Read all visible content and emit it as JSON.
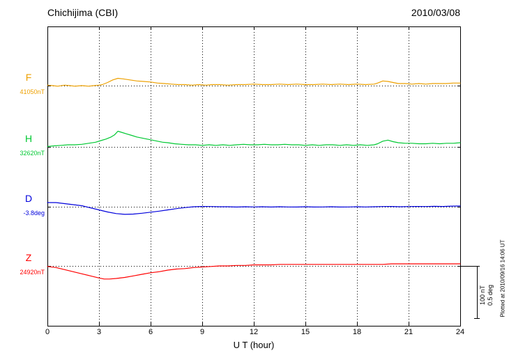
{
  "header": {
    "station": "Chichijima (CBI)",
    "date": "2010/03/08"
  },
  "footer_note": "Plotted at 2010/09/16 14:06 UT",
  "scale_bar": {
    "nt_label": "100 nT",
    "deg_label": "0.5 deg"
  },
  "x_axis": {
    "label": "U T (hour)",
    "min": 0,
    "max": 24,
    "ticks": [
      0,
      3,
      6,
      9,
      12,
      15,
      18,
      21,
      24
    ]
  },
  "chart_data": {
    "type": "line",
    "title": "Chichijima (CBI) magnetogram",
    "subtitle": "2010/03/08",
    "xlabel": "U T (hour)",
    "x_range": [
      0,
      24
    ],
    "grid": "dotted vertical every 3 hours",
    "legend_position": "left margin, one label per trace",
    "scale_per_division": {
      "nT": 100,
      "deg": 0.5
    },
    "series": [
      {
        "name": "F",
        "baseline_label": "41050nT",
        "baseline_value": 41050,
        "unit": "nT",
        "color": "#eda000",
        "points": [
          [
            0,
            1
          ],
          [
            0.3,
            0
          ],
          [
            0.6,
            -1
          ],
          [
            1,
            1
          ],
          [
            1.3,
            0
          ],
          [
            1.6,
            -1
          ],
          [
            2,
            0
          ],
          [
            2.4,
            -1
          ],
          [
            2.7,
            0
          ],
          [
            3,
            1
          ],
          [
            3.2,
            2
          ],
          [
            3.5,
            6
          ],
          [
            3.8,
            11
          ],
          [
            4.1,
            14
          ],
          [
            4.4,
            13
          ],
          [
            4.8,
            11
          ],
          [
            5.2,
            9
          ],
          [
            5.6,
            8
          ],
          [
            6,
            7
          ],
          [
            6.4,
            5
          ],
          [
            6.8,
            4
          ],
          [
            7.2,
            3
          ],
          [
            7.6,
            2
          ],
          [
            8,
            2
          ],
          [
            8.4,
            1
          ],
          [
            8.8,
            2
          ],
          [
            9.2,
            1
          ],
          [
            9.6,
            2
          ],
          [
            10,
            2
          ],
          [
            10.5,
            1
          ],
          [
            11,
            2
          ],
          [
            11.5,
            2
          ],
          [
            12,
            3
          ],
          [
            12.5,
            2
          ],
          [
            13,
            2
          ],
          [
            13.5,
            3
          ],
          [
            14,
            2
          ],
          [
            14.5,
            3
          ],
          [
            15,
            2
          ],
          [
            15.5,
            2
          ],
          [
            16,
            3
          ],
          [
            16.5,
            2
          ],
          [
            17,
            3
          ],
          [
            17.5,
            2
          ],
          [
            18,
            3
          ],
          [
            18.5,
            2
          ],
          [
            19,
            3
          ],
          [
            19.2,
            5
          ],
          [
            19.5,
            9
          ],
          [
            19.8,
            8
          ],
          [
            20.1,
            6
          ],
          [
            20.4,
            4
          ],
          [
            20.8,
            4
          ],
          [
            21.2,
            3
          ],
          [
            21.6,
            4
          ],
          [
            22,
            3
          ],
          [
            22.4,
            4
          ],
          [
            22.8,
            4
          ],
          [
            23.2,
            4
          ],
          [
            23.6,
            5
          ],
          [
            24,
            5
          ]
        ]
      },
      {
        "name": "H",
        "baseline_label": "32620nT",
        "baseline_value": 32620,
        "unit": "nT",
        "color": "#00c832",
        "points": [
          [
            0,
            1
          ],
          [
            0.4,
            2
          ],
          [
            0.8,
            3
          ],
          [
            1.2,
            4
          ],
          [
            1.6,
            4
          ],
          [
            2,
            5
          ],
          [
            2.4,
            7
          ],
          [
            2.8,
            9
          ],
          [
            3.1,
            12
          ],
          [
            3.4,
            15
          ],
          [
            3.7,
            19
          ],
          [
            3.9,
            23
          ],
          [
            4.1,
            30
          ],
          [
            4.3,
            28
          ],
          [
            4.6,
            25
          ],
          [
            4.9,
            22
          ],
          [
            5.2,
            19
          ],
          [
            5.5,
            17
          ],
          [
            5.8,
            15
          ],
          [
            6.1,
            13
          ],
          [
            6.4,
            11
          ],
          [
            6.7,
            9
          ],
          [
            7,
            8
          ],
          [
            7.4,
            6
          ],
          [
            7.8,
            5
          ],
          [
            8.2,
            4
          ],
          [
            8.6,
            4
          ],
          [
            9,
            3
          ],
          [
            9.4,
            4
          ],
          [
            9.8,
            3
          ],
          [
            10.2,
            4
          ],
          [
            10.6,
            3
          ],
          [
            11,
            4
          ],
          [
            11.4,
            5
          ],
          [
            11.8,
            4
          ],
          [
            12.2,
            4
          ],
          [
            12.6,
            5
          ],
          [
            13,
            4
          ],
          [
            13.4,
            4
          ],
          [
            13.8,
            5
          ],
          [
            14.2,
            4
          ],
          [
            14.6,
            4
          ],
          [
            15,
            3
          ],
          [
            15.4,
            4
          ],
          [
            15.8,
            3
          ],
          [
            16.2,
            4
          ],
          [
            16.6,
            4
          ],
          [
            17,
            3
          ],
          [
            17.4,
            4
          ],
          [
            17.8,
            3
          ],
          [
            18.2,
            4
          ],
          [
            18.6,
            3
          ],
          [
            19,
            4
          ],
          [
            19.2,
            6
          ],
          [
            19.5,
            11
          ],
          [
            19.8,
            13
          ],
          [
            20.1,
            10
          ],
          [
            20.4,
            8
          ],
          [
            20.8,
            7
          ],
          [
            21.2,
            7
          ],
          [
            21.6,
            6
          ],
          [
            22,
            6
          ],
          [
            22.4,
            7
          ],
          [
            22.8,
            6
          ],
          [
            23.2,
            7
          ],
          [
            23.6,
            7
          ],
          [
            24,
            8
          ]
        ]
      },
      {
        "name": "D",
        "baseline_label": "-3.8deg",
        "baseline_value": -3.8,
        "unit": "deg",
        "color": "#0000dc",
        "points": [
          [
            0,
            0.04
          ],
          [
            0.5,
            0.04
          ],
          [
            1,
            0.03
          ],
          [
            1.5,
            0.02
          ],
          [
            2,
            0.01
          ],
          [
            2.5,
            -0.01
          ],
          [
            3,
            -0.03
          ],
          [
            3.5,
            -0.05
          ],
          [
            4,
            -0.065
          ],
          [
            4.5,
            -0.073
          ],
          [
            5,
            -0.07
          ],
          [
            5.5,
            -0.062
          ],
          [
            6,
            -0.052
          ],
          [
            6.5,
            -0.042
          ],
          [
            7,
            -0.03
          ],
          [
            7.5,
            -0.018
          ],
          [
            8,
            -0.008
          ],
          [
            8.5,
            0.0
          ],
          [
            9,
            0.003
          ],
          [
            9.5,
            0.002
          ],
          [
            10,
            0.0
          ],
          [
            10.5,
            0.0
          ],
          [
            11,
            -0.003
          ],
          [
            11.5,
            0.0
          ],
          [
            12,
            -0.002
          ],
          [
            12.5,
            0.0
          ],
          [
            13,
            -0.003
          ],
          [
            13.5,
            0.0
          ],
          [
            14,
            -0.002
          ],
          [
            14.5,
            -0.003
          ],
          [
            15,
            0.0
          ],
          [
            15.5,
            -0.003
          ],
          [
            16,
            -0.002
          ],
          [
            16.5,
            0.0
          ],
          [
            17,
            -0.003
          ],
          [
            17.5,
            -0.002
          ],
          [
            18,
            0.0
          ],
          [
            18.5,
            -0.002
          ],
          [
            19,
            0.0
          ],
          [
            19.5,
            0.002
          ],
          [
            20,
            0.003
          ],
          [
            20.5,
            0.0
          ],
          [
            21,
            0.002
          ],
          [
            21.5,
            0.003
          ],
          [
            22,
            0.002
          ],
          [
            22.5,
            0.004
          ],
          [
            23,
            0.003
          ],
          [
            23.5,
            0.006
          ],
          [
            24,
            0.007
          ]
        ]
      },
      {
        "name": "Z",
        "baseline_label": "24920nT",
        "baseline_value": 24920,
        "unit": "nT",
        "color": "#ff0000",
        "points": [
          [
            0,
            -1
          ],
          [
            0.5,
            -3
          ],
          [
            1,
            -7
          ],
          [
            1.5,
            -11
          ],
          [
            2,
            -15
          ],
          [
            2.5,
            -19
          ],
          [
            3,
            -23
          ],
          [
            3.3,
            -25
          ],
          [
            3.6,
            -25
          ],
          [
            4,
            -24
          ],
          [
            4.5,
            -22
          ],
          [
            5,
            -19
          ],
          [
            5.5,
            -16
          ],
          [
            6,
            -13
          ],
          [
            6.5,
            -11
          ],
          [
            7,
            -8
          ],
          [
            7.5,
            -6
          ],
          [
            8,
            -5
          ],
          [
            8.5,
            -3
          ],
          [
            9,
            -2
          ],
          [
            9.5,
            -1
          ],
          [
            10,
            0
          ],
          [
            10.5,
            0
          ],
          [
            11,
            1
          ],
          [
            11.5,
            1
          ],
          [
            12,
            2
          ],
          [
            12.5,
            2
          ],
          [
            13,
            2
          ],
          [
            13.5,
            3
          ],
          [
            14,
            3
          ],
          [
            14.5,
            3
          ],
          [
            15,
            3
          ],
          [
            15.5,
            3
          ],
          [
            16,
            3
          ],
          [
            16.5,
            3
          ],
          [
            17,
            3
          ],
          [
            17.5,
            3
          ],
          [
            18,
            3
          ],
          [
            18.5,
            3
          ],
          [
            19,
            3
          ],
          [
            19.5,
            3
          ],
          [
            20,
            4
          ],
          [
            20.5,
            4
          ],
          [
            21,
            4
          ],
          [
            21.5,
            4
          ],
          [
            22,
            4
          ],
          [
            22.5,
            4
          ],
          [
            23,
            4
          ],
          [
            23.5,
            4
          ],
          [
            24,
            4
          ]
        ]
      }
    ]
  }
}
